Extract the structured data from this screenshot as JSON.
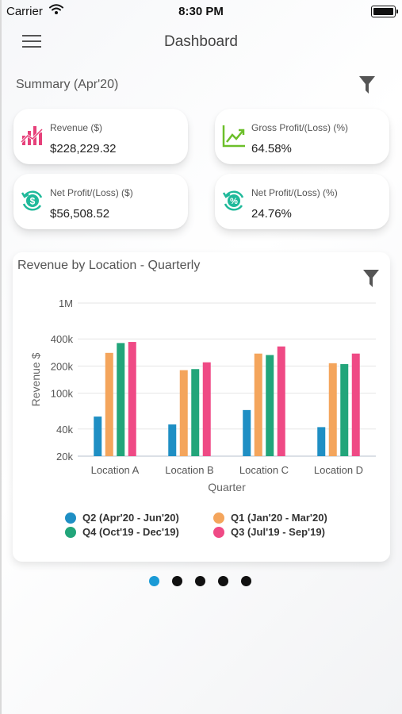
{
  "status_bar": {
    "carrier": "Carrier",
    "time": "8:30 PM"
  },
  "header": {
    "title": "Dashboard"
  },
  "summary": {
    "title": "Summary (Apr'20)",
    "cards": [
      {
        "label": "Revenue ($)",
        "value": "$228,229.32",
        "icon": "revenue-chart-icon",
        "color": "#e6407a"
      },
      {
        "label": "Gross Profit/(Loss) (%)",
        "value": "64.58%",
        "icon": "trend-line-icon",
        "color": "#6cbf2a"
      },
      {
        "label": "Net Profit/(Loss) ($)",
        "value": "$56,508.52",
        "icon": "dollar-cycle-icon",
        "color": "#1fb99a"
      },
      {
        "label": "Net Profit/(Loss) (%)",
        "value": "24.76%",
        "icon": "percent-cycle-icon",
        "color": "#1fb99a"
      }
    ]
  },
  "chart_panel": {
    "title": "Revenue by Location - Quarterly"
  },
  "chart_data": {
    "type": "bar",
    "scale": "log",
    "xlabel": "Quarter",
    "ylabel": "Revenue $",
    "ylim": [
      20000,
      1000000
    ],
    "y_ticks": [
      20000,
      40000,
      100000,
      200000,
      400000,
      1000000
    ],
    "y_tick_labels": [
      "20k",
      "40k",
      "100k",
      "200k",
      "400k",
      "1M"
    ],
    "grid": true,
    "legend_position": "bottom",
    "categories": [
      "Location A",
      "Location B",
      "Location C",
      "Location D"
    ],
    "series": [
      {
        "name": "Q2 (Apr'20 - Jun'20)",
        "color": "#1f8fc4",
        "values": [
          55000,
          45000,
          65000,
          42000
        ]
      },
      {
        "name": "Q1 (Jan'20 - Mar'20)",
        "color": "#f4a55c",
        "values": [
          280000,
          180000,
          275000,
          215000
        ]
      },
      {
        "name": "Q4 (Oct'19 - Dec'19)",
        "color": "#22a57a",
        "values": [
          360000,
          185000,
          265000,
          210000
        ]
      },
      {
        "name": "Q3 (Jul'19 - Sep'19)",
        "color": "#ef4a85",
        "values": [
          370000,
          220000,
          330000,
          275000
        ]
      }
    ]
  },
  "pager": {
    "count": 5,
    "active": 0
  }
}
